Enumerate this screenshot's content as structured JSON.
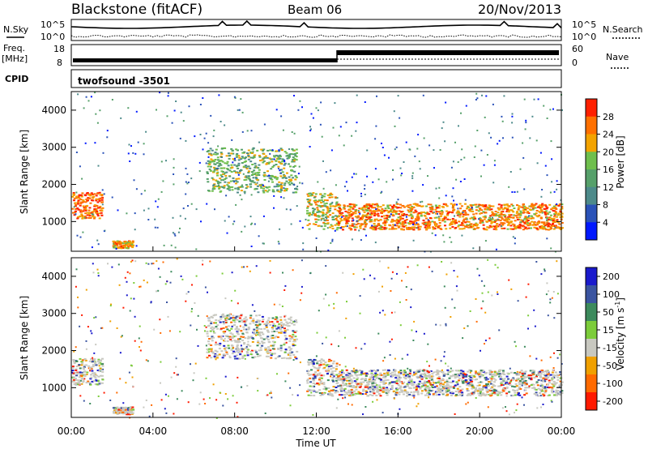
{
  "header": {
    "station": "Blackstone (fitACF)",
    "beam": "Beam 06",
    "date": "20/Nov/2013"
  },
  "top_panels": {
    "nsky_label": "N.Sky",
    "nsearch_label": "N.Search",
    "noise_ticks": [
      "10^5",
      "10^0"
    ],
    "freq_label": "Freq.",
    "freq_unit": "[MHz]",
    "freq_ticks": [
      "18",
      "8"
    ],
    "nave_label": "Nave",
    "nave_ticks": [
      "60",
      "0"
    ],
    "cpid_label": "CPID",
    "cpid_value": "twofsound -3501"
  },
  "chart_data": [
    {
      "type": "heatmap",
      "title": "",
      "xlabel": "Time UT",
      "ylabel": "Slant Range [km]",
      "xlim": [
        0,
        24
      ],
      "ylim": [
        200,
        4500
      ],
      "x_ticks": [
        "00:00",
        "04:00",
        "08:00",
        "12:00",
        "16:00",
        "20:00",
        "00:00"
      ],
      "y_ticks": [
        "1000",
        "2000",
        "3000",
        "4000"
      ],
      "colorbar": {
        "label": "Power [dB]",
        "range": [
          0,
          32
        ],
        "ticks": [
          "4",
          "8",
          "12",
          "16",
          "20",
          "24",
          "28"
        ],
        "colors": [
          "#0018ff",
          "#2a52b8",
          "#4d8a8a",
          "#56a06a",
          "#6fbf4d",
          "#f3a300",
          "#ff7000",
          "#ff2000"
        ]
      },
      "echo_bands": [
        {
          "t_start": 0.0,
          "t_end": 1.5,
          "range_start_km": 1100,
          "range_end_km": 1800,
          "value": 28
        },
        {
          "t_start": 2.0,
          "t_end": 3.0,
          "range_start_km": 300,
          "range_end_km": 500,
          "value": 24
        },
        {
          "t_start": 6.6,
          "t_end": 11.0,
          "range_start_km": 1800,
          "range_end_km": 3000,
          "value": 16
        },
        {
          "t_start": 11.5,
          "t_end": 13.0,
          "range_start_km": 800,
          "range_end_km": 1800,
          "value": 20
        },
        {
          "t_start": 13.0,
          "t_end": 24.0,
          "range_start_km": 800,
          "range_end_km": 1500,
          "value": 26
        }
      ]
    },
    {
      "type": "heatmap",
      "title": "",
      "xlabel": "Time UT",
      "ylabel": "Slant Range [km]",
      "xlim": [
        0,
        24
      ],
      "ylim": [
        200,
        4500
      ],
      "x_ticks": [
        "00:00",
        "04:00",
        "08:00",
        "12:00",
        "16:00",
        "20:00",
        "00:00"
      ],
      "y_ticks": [
        "1000",
        "2000",
        "3000",
        "4000"
      ],
      "colorbar": {
        "label": "Velocity [m s-1]",
        "ticks": [
          "200",
          "100",
          "50",
          "15",
          "-15",
          "-50",
          "-100",
          "-200"
        ],
        "colors": [
          "#1a1acc",
          "#3a54a0",
          "#3c8a5c",
          "#7ccc3a",
          "#c8c8c0",
          "#f0a000",
          "#ff6a00",
          "#ff1a00"
        ]
      }
    }
  ],
  "axis_title": "Time UT"
}
